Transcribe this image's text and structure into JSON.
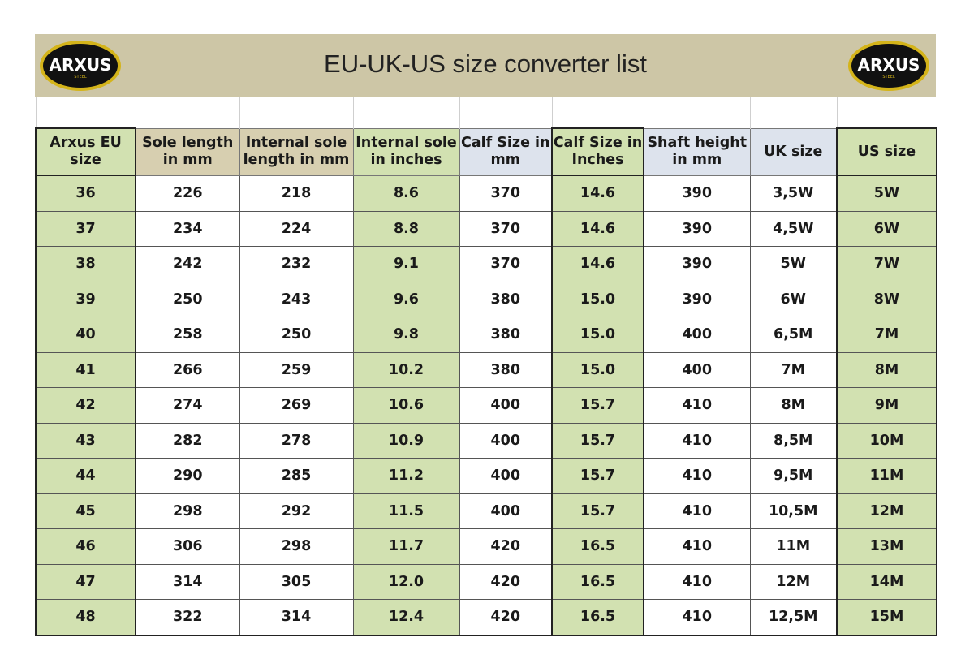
{
  "logo": {
    "brand": "ARXUS",
    "sub": "STEEL"
  },
  "title": "EU-UK-US size converter list",
  "headers": [
    [
      "Arxus EU",
      "size"
    ],
    [
      "Sole length",
      "in mm"
    ],
    [
      "Internal sole",
      "length in mm"
    ],
    [
      "Internal sole",
      "in inches"
    ],
    [
      "Calf Size in",
      "mm"
    ],
    [
      "Calf Size in",
      "Inches"
    ],
    [
      "Shaft height",
      "in mm"
    ],
    [
      "UK size"
    ],
    [
      "US size"
    ]
  ],
  "rows": [
    [
      "36",
      "226",
      "218",
      "8.6",
      "370",
      "14.6",
      "390",
      "3,5W",
      "5W"
    ],
    [
      "37",
      "234",
      "224",
      "8.8",
      "370",
      "14.6",
      "390",
      "4,5W",
      "6W"
    ],
    [
      "38",
      "242",
      "232",
      "9.1",
      "370",
      "14.6",
      "390",
      "5W",
      "7W"
    ],
    [
      "39",
      "250",
      "243",
      "9.6",
      "380",
      "15.0",
      "390",
      "6W",
      "8W"
    ],
    [
      "40",
      "258",
      "250",
      "9.8",
      "380",
      "15.0",
      "400",
      "6,5M",
      "7M"
    ],
    [
      "41",
      "266",
      "259",
      "10.2",
      "380",
      "15.0",
      "400",
      "7M",
      "8M"
    ],
    [
      "42",
      "274",
      "269",
      "10.6",
      "400",
      "15.7",
      "410",
      "8M",
      "9M"
    ],
    [
      "43",
      "282",
      "278",
      "10.9",
      "400",
      "15.7",
      "410",
      "8,5M",
      "10M"
    ],
    [
      "44",
      "290",
      "285",
      "11.2",
      "400",
      "15.7",
      "410",
      "9,5M",
      "11M"
    ],
    [
      "45",
      "298",
      "292",
      "11.5",
      "400",
      "15.7",
      "410",
      "10,5M",
      "12M"
    ],
    [
      "46",
      "306",
      "298",
      "11.7",
      "420",
      "16.5",
      "410",
      "11M",
      "13M"
    ],
    [
      "47",
      "314",
      "305",
      "12.0",
      "420",
      "16.5",
      "410",
      "12M",
      "14M"
    ],
    [
      "48",
      "322",
      "314",
      "12.4",
      "420",
      "16.5",
      "410",
      "12,5M",
      "15M"
    ]
  ],
  "colors": {
    "title_band": "#cdc6a6",
    "green": "#d2e1b1",
    "beige_header": "#d7cfb0",
    "blue_header": "#dde3ed",
    "logo_gold": "#d4b41a"
  }
}
